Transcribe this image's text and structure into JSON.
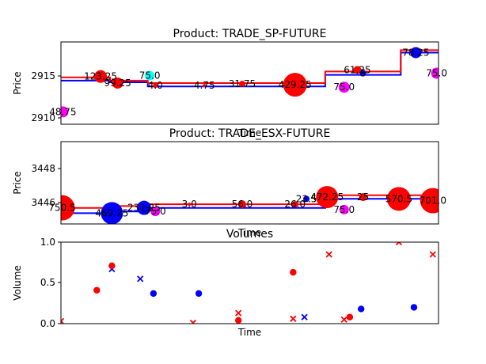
{
  "chart_data": [
    {
      "type": "line",
      "title": "Product: TRADE_SP-FUTURE",
      "xlabel": "Time",
      "ylabel": "Price",
      "yticks": [
        "2910",
        "2915"
      ],
      "xlim": [
        0,
        100
      ],
      "ylim": [
        2909.3,
        2919.3
      ],
      "grid": false,
      "step_series": [
        {
          "color": "#0000ff",
          "points": [
            [
              0,
              2914.6
            ],
            [
              13,
              2914.6
            ],
            [
              13,
              2914.4
            ],
            [
              23,
              2914.4
            ],
            [
              23,
              2913.9
            ],
            [
              70,
              2913.9
            ],
            [
              70,
              2915.3
            ],
            [
              90,
              2915.3
            ],
            [
              90,
              2918.0
            ],
            [
              100,
              2918.0
            ]
          ]
        },
        {
          "color": "#ff0000",
          "points": [
            [
              0,
              2915.0
            ],
            [
              13,
              2915.0
            ],
            [
              13,
              2914.6
            ],
            [
              23,
              2914.6
            ],
            [
              23,
              2914.3
            ],
            [
              70,
              2914.3
            ],
            [
              70,
              2915.7
            ],
            [
              90,
              2915.7
            ],
            [
              90,
              2918.3
            ],
            [
              100,
              2918.3
            ]
          ]
        }
      ],
      "trades": [
        {
          "x": 0.5,
          "y": 2910.8,
          "size": 7,
          "color": "#ff00ff",
          "label": "48.75"
        },
        {
          "x": 10.5,
          "y": 2915.1,
          "size": 8,
          "color": "#ff0000",
          "label": "123.25"
        },
        {
          "x": 15,
          "y": 2914.3,
          "size": 7,
          "color": "#ff0000",
          "label": "99.25"
        },
        {
          "x": 23.5,
          "y": 2915.2,
          "size": 6,
          "color": "#00ffff",
          "label": "75.0"
        },
        {
          "x": 25,
          "y": 2914.0,
          "size": 3,
          "color": "#ff0000",
          "label": "4.0"
        },
        {
          "x": 38,
          "y": 2914.0,
          "size": 2,
          "color": "#ff0000",
          "label": "4.75"
        },
        {
          "x": 48,
          "y": 2914.2,
          "size": 4,
          "color": "#ff0000",
          "label": "31.75"
        },
        {
          "x": 62,
          "y": 2914.1,
          "size": 15,
          "color": "#ff0000",
          "label": "429.25"
        },
        {
          "x": 75,
          "y": 2913.8,
          "size": 7,
          "color": "#ff00ff",
          "label": "75.0"
        },
        {
          "x": 78.5,
          "y": 2915.9,
          "size": 5,
          "color": "#ff0000",
          "label": "61.25"
        },
        {
          "x": 80,
          "y": 2915.5,
          "size": 4,
          "color": "#0000ff",
          "label": "5"
        },
        {
          "x": 94,
          "y": 2918.0,
          "size": 7,
          "color": "#0000ff",
          "label": "78.25"
        },
        {
          "x": 99.5,
          "y": 2915.5,
          "size": 7,
          "color": "#ff00ff",
          "label": "75.0"
        }
      ]
    },
    {
      "type": "line",
      "title": "Product: TRADE_ESX-FUTURE",
      "xlabel": "Time",
      "ylabel": "Price",
      "yticks": [
        "3446",
        "3448"
      ],
      "xlim": [
        0,
        100
      ],
      "ylim": [
        3445.2,
        3449.8
      ],
      "grid": false,
      "step_series": [
        {
          "color": "#0000ff",
          "points": [
            [
              0,
              3445.8
            ],
            [
              13,
              3445.8
            ],
            [
              13,
              3445.9
            ],
            [
              23,
              3445.9
            ],
            [
              23,
              3446.1
            ],
            [
              70,
              3446.1
            ],
            [
              70,
              3446.6
            ],
            [
              100,
              3446.6
            ]
          ]
        },
        {
          "color": "#ff0000",
          "points": [
            [
              0,
              3446.1
            ],
            [
              13,
              3446.1
            ],
            [
              13,
              3446.2
            ],
            [
              23,
              3446.2
            ],
            [
              23,
              3446.3
            ],
            [
              70,
              3446.3
            ],
            [
              70,
              3446.8
            ],
            [
              100,
              3446.8
            ]
          ]
        }
      ],
      "trades": [
        {
          "x": 0.3,
          "y": 3446.1,
          "size": 16,
          "color": "#ff0000",
          "label": "750.5"
        },
        {
          "x": 13.5,
          "y": 3445.8,
          "size": 14,
          "color": "#0000ff",
          "label": "469.25"
        },
        {
          "x": 22,
          "y": 3446.1,
          "size": 9,
          "color": "#0000ff",
          "label": "231.25"
        },
        {
          "x": 25,
          "y": 3445.9,
          "size": 6,
          "color": "#ff00ff",
          "label": "75.0"
        },
        {
          "x": 34,
          "y": 3446.3,
          "size": 2,
          "color": "#ff0000",
          "label": "3.0"
        },
        {
          "x": 48,
          "y": 3446.3,
          "size": 5,
          "color": "#ff0000",
          "label": "56.0"
        },
        {
          "x": 62,
          "y": 3446.3,
          "size": 4,
          "color": "#ff0000",
          "label": "26.0"
        },
        {
          "x": 65,
          "y": 3446.6,
          "size": 4,
          "color": "#0000ff",
          "label": "23.5"
        },
        {
          "x": 70.5,
          "y": 3446.7,
          "size": 14,
          "color": "#ff0000",
          "label": "472.25"
        },
        {
          "x": 75,
          "y": 3446.0,
          "size": 6,
          "color": "#ff00ff",
          "label": "75.0"
        },
        {
          "x": 80,
          "y": 3446.7,
          "size": 5,
          "color": "#ff0000",
          "label": "25"
        },
        {
          "x": 89.5,
          "y": 3446.6,
          "size": 15,
          "color": "#ff0000",
          "label": "570.5"
        },
        {
          "x": 98.5,
          "y": 3446.5,
          "size": 16,
          "color": "#ff0000",
          "label": "701.0"
        }
      ]
    },
    {
      "type": "scatter",
      "title": "Volumes",
      "xlabel": "Time",
      "ylabel": "Volume",
      "yticks": [
        "0.0",
        "0.5",
        "1.0"
      ],
      "xlim": [
        0,
        100
      ],
      "ylim": [
        0,
        1.0
      ],
      "grid": false,
      "points": [
        {
          "x": 0,
          "y": 0.03,
          "marker": "x",
          "color": "#ff0000"
        },
        {
          "x": 9.5,
          "y": 0.41,
          "marker": "o",
          "color": "#ff0000"
        },
        {
          "x": 13.5,
          "y": 0.67,
          "marker": "x",
          "color": "#0000ff"
        },
        {
          "x": 13.5,
          "y": 0.71,
          "marker": "o",
          "color": "#ff0000"
        },
        {
          "x": 21,
          "y": 0.55,
          "marker": "x",
          "color": "#0000ff"
        },
        {
          "x": 24.5,
          "y": 0.37,
          "marker": "o",
          "color": "#0000ff"
        },
        {
          "x": 36.5,
          "y": 0.37,
          "marker": "o",
          "color": "#0000ff"
        },
        {
          "x": 35,
          "y": 0.01,
          "marker": "x",
          "color": "#ff0000"
        },
        {
          "x": 47,
          "y": 0.13,
          "marker": "x",
          "color": "#ff0000"
        },
        {
          "x": 47,
          "y": 0.04,
          "marker": "o",
          "color": "#ff0000"
        },
        {
          "x": 61.5,
          "y": 0.63,
          "marker": "o",
          "color": "#ff0000"
        },
        {
          "x": 61.5,
          "y": 0.06,
          "marker": "x",
          "color": "#ff0000"
        },
        {
          "x": 64.5,
          "y": 0.08,
          "marker": "x",
          "color": "#0000ff"
        },
        {
          "x": 71,
          "y": 0.85,
          "marker": "x",
          "color": "#ff0000"
        },
        {
          "x": 75,
          "y": 0.05,
          "marker": "x",
          "color": "#ff0000"
        },
        {
          "x": 76.5,
          "y": 0.08,
          "marker": "o",
          "color": "#ff0000"
        },
        {
          "x": 79.5,
          "y": 0.18,
          "marker": "o",
          "color": "#0000ff"
        },
        {
          "x": 89.5,
          "y": 1.0,
          "marker": "x",
          "color": "#ff0000"
        },
        {
          "x": 93.5,
          "y": 0.2,
          "marker": "o",
          "color": "#0000ff"
        },
        {
          "x": 98.5,
          "y": 0.85,
          "marker": "x",
          "color": "#ff0000"
        }
      ]
    }
  ]
}
